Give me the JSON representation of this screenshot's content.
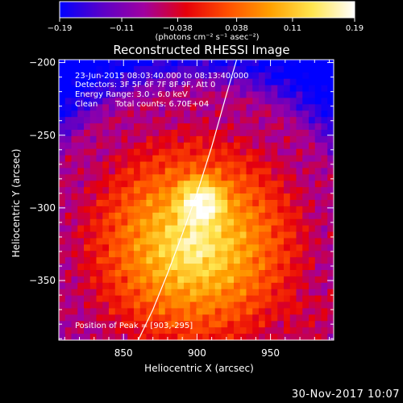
{
  "chart_data": {
    "type": "heatmap",
    "title": "Reconstructed RHESSI Image",
    "xlabel": "Heliocentric X (arcsec)",
    "ylabel": "Heliocentric Y (arcsec)",
    "xlim": [
      806,
      993
    ],
    "ylim": [
      -391,
      -198
    ],
    "x_ticks": [
      850,
      900,
      950
    ],
    "y_ticks": [
      -350,
      -300,
      -250,
      -200
    ],
    "x_tick_labels": [
      "850",
      "900",
      "950"
    ],
    "y_tick_labels": [
      "−350",
      "−300",
      "−250",
      "−200"
    ],
    "colorbar": {
      "range": [
        -0.19,
        0.19
      ],
      "ticks": [
        -0.19,
        -0.11,
        -0.038,
        0.038,
        0.11,
        0.19
      ],
      "tick_labels": [
        "−0.19",
        "−0.11",
        "−0.038",
        "0.038",
        "0.11",
        "0.19"
      ],
      "unit_label": "(photons cm⁻² s⁻¹ asec⁻²)",
      "colors": [
        "#0000ff",
        "#5a00c8",
        "#a000a0",
        "#e6000a",
        "#ff5000",
        "#ffa000",
        "#ffe650",
        "#ffffff"
      ]
    },
    "annotations": {
      "time_range": "23-Jun-2015 08:03:40.000 to 08:13:40.000",
      "detectors": "Detectors: 3F 5F 6F 7F 8F 9F, Att 0",
      "energy": "Energy Range: 3.0 - 6.0 keV",
      "method": "Clean",
      "counts": "Total counts: 6.70E+04",
      "peak": "Position of Peak = [903,-295]"
    },
    "peak": {
      "x": 903,
      "y": -295
    },
    "limb": [
      [
        860,
        -391
      ],
      [
        870,
        -370
      ],
      [
        880,
        -345
      ],
      [
        890,
        -318
      ],
      [
        900,
        -290
      ],
      [
        910,
        -258
      ],
      [
        920,
        -222
      ],
      [
        927,
        -198
      ]
    ]
  },
  "footer": {
    "date": "30-Nov-2017 10:07"
  }
}
